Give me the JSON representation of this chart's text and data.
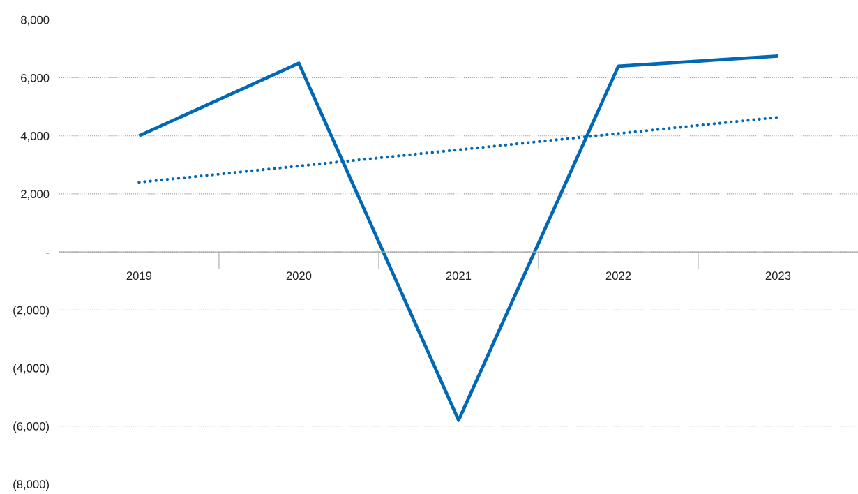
{
  "chart_data": {
    "type": "line",
    "categories": [
      "2019",
      "2020",
      "2021",
      "2022",
      "2023"
    ],
    "series": [
      {
        "color": "#0068b4",
        "values": [
          4000,
          6500,
          -5800,
          6400,
          6750
        ],
        "line_style": "solid"
      },
      {
        "color": "#0068b4",
        "values": [
          2400,
          2960,
          3520,
          4080,
          4640
        ],
        "line_style": "dotted"
      }
    ],
    "ylim": [
      -8000,
      8000
    ],
    "yticks": [
      {
        "value": -8000,
        "label": "(8,000)"
      },
      {
        "value": -6000,
        "label": "(6,000)"
      },
      {
        "value": -4000,
        "label": "(4,000)"
      },
      {
        "value": -2000,
        "label": "(2,000)"
      },
      {
        "value": 0,
        "label": "-"
      },
      {
        "value": 2000,
        "label": "2,000"
      },
      {
        "value": 4000,
        "label": "4,000"
      },
      {
        "value": 6000,
        "label": "6,000"
      },
      {
        "value": 8000,
        "label": "8,000"
      }
    ],
    "grid": "y"
  }
}
